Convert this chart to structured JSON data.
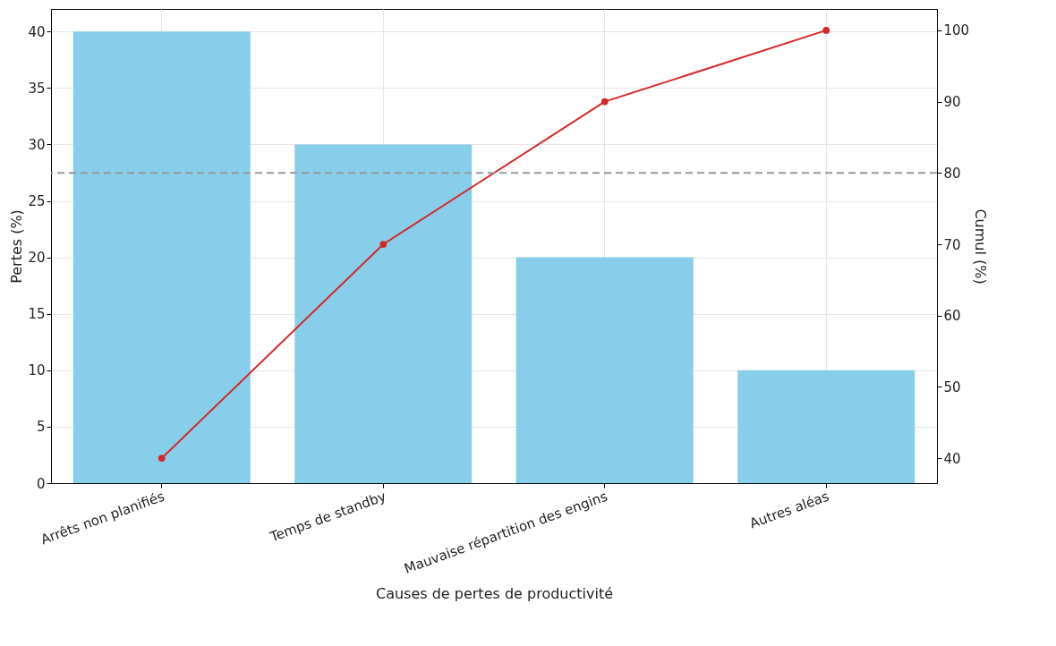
{
  "chart_data": {
    "type": "bar",
    "xlabel": "Causes de pertes de productivité",
    "ylabel": "Pertes (%)",
    "y2label": "Cumul (%)",
    "categories": [
      "Arrêts non planifiés",
      "Temps de standby",
      "Mauvaise répartition des engins",
      "Autres aléas"
    ],
    "series": [
      {
        "color": "#87ceeb",
        "values": [
          40,
          30,
          20,
          10
        ]
      },
      {
        "type": "line",
        "axis": "y2",
        "color": "#d62728",
        "values": [
          40,
          70,
          90,
          100
        ]
      }
    ],
    "ylim": [
      0,
      42
    ],
    "yticks": [
      0,
      5,
      10,
      15,
      20,
      25,
      30,
      35,
      40
    ],
    "y2lim": [
      36.5,
      103
    ],
    "y2ticks": [
      40,
      50,
      60,
      70,
      80,
      90,
      100
    ],
    "ref_lines": [
      {
        "axis": "y2",
        "value": 80,
        "color": "#999999",
        "line_style": "dashed"
      }
    ],
    "grid": true,
    "marker": "circle",
    "line_style": "solid"
  }
}
